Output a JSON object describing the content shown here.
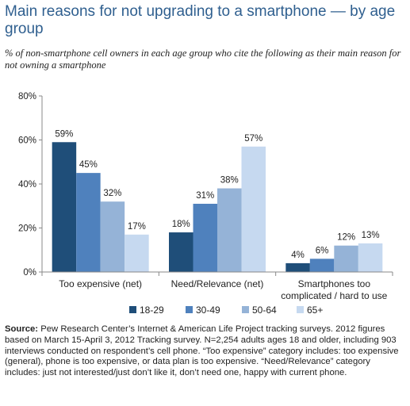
{
  "title": "Main reasons for not upgrading to a smartphone — by age group",
  "subtitle": "% of non-smartphone cell owners in each age group who cite the following as their main reason for not owning a smartphone",
  "source_label": "Source:",
  "source_text": "Pew Research Center’s Internet & American Life Project tracking surveys. 2012 figures based on March 15-April 3, 2012 Tracking survey. N=2,254 adults ages 18 and older, including 903 interviews conducted on respondent’s cell phone. “Too expensive” category includes: too expensive (general), phone is too expensive, or data plan is too expensive. “Need/Relevance” category includes: just not interested/just don’t like it, don’t need one, happy with current phone.",
  "colors": {
    "18-29": "#1f4e79",
    "30-49": "#4f81bd",
    "50-64": "#95b3d7",
    "65+": "#c6d9f0",
    "title": "#2f5f8f"
  },
  "chart_data": {
    "type": "bar",
    "categories": [
      [
        "Too expensive (net)"
      ],
      [
        "Need/Relevance (net)"
      ],
      [
        "Smartphones too",
        "complicated / hard to use"
      ]
    ],
    "series": [
      {
        "name": "18-29",
        "values": [
          59,
          18,
          4
        ],
        "labels": [
          "59%",
          "18%",
          "4%"
        ]
      },
      {
        "name": "30-49",
        "values": [
          45,
          31,
          6
        ],
        "labels": [
          "45%",
          "31%",
          "6%"
        ]
      },
      {
        "name": "50-64",
        "values": [
          32,
          38,
          12
        ],
        "labels": [
          "32%",
          "38%",
          "12%"
        ]
      },
      {
        "name": "65+",
        "values": [
          17,
          57,
          13
        ],
        "labels": [
          "17%",
          "57%",
          "13%"
        ]
      }
    ],
    "yticks": [
      "0%",
      "20%",
      "40%",
      "60%",
      "80%"
    ],
    "ylim": [
      0,
      80
    ],
    "legend_position": "bottom",
    "grid": false
  }
}
